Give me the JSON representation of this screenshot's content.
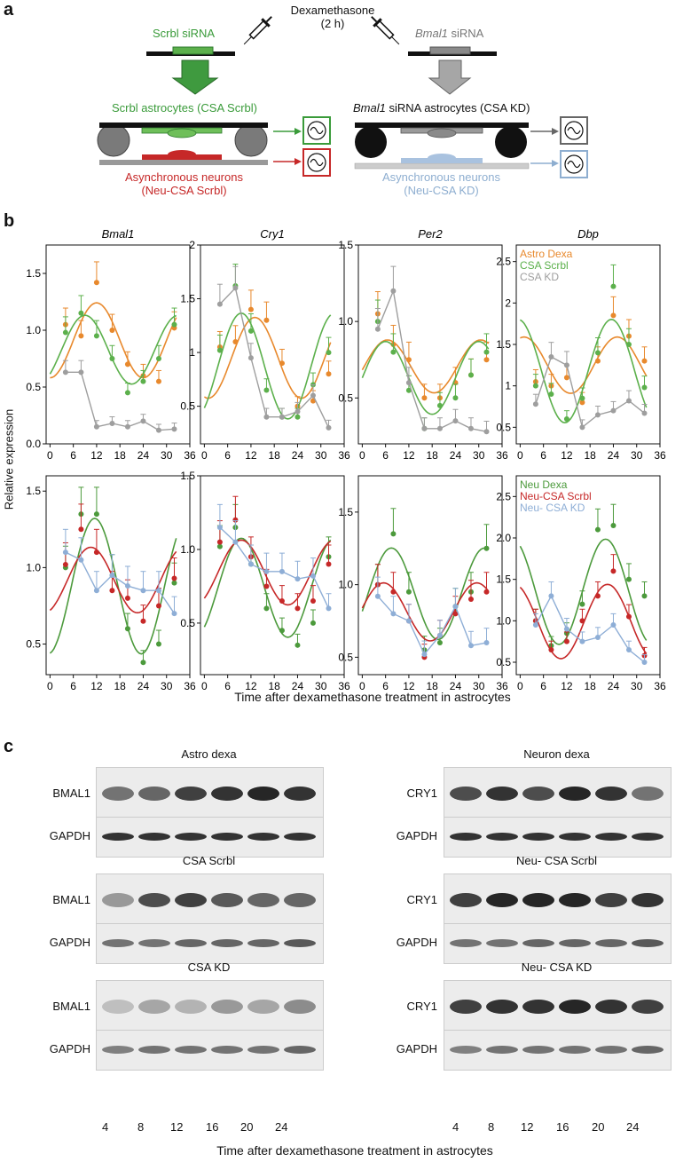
{
  "panel_a": {
    "letter": "a",
    "dexa_line1": "Dexamethasone",
    "dexa_line2": "(2 h)",
    "scrbl_sirna": "Scrbl siRNA",
    "bmal1_sirna_gene": "Bmal1",
    "bmal1_sirna_rest": " siRNA",
    "scrbl_astro": "Scrbl astrocytes (CSA Scrbl)",
    "bmal1_astro_gene": "Bmal1",
    "bmal1_astro_rest": " siRNA astrocytes (CSA KD)",
    "async_neurons_l1": "Asynchronous neurons",
    "async_neurons_l2": "(Neu-CSA Scrbl)",
    "async_neurons_kd_l1": "Asynchronous neurons",
    "async_neurons_kd_l2": "(Neu-CSA KD)",
    "colors": {
      "green": "#3a9b3a",
      "red": "#c62828",
      "gray": "#808080",
      "blue": "#8eaed0",
      "black": "#111111"
    }
  },
  "panel_b": {
    "letter": "b",
    "ylabel": "Relative expression",
    "xlabel": "Time after dexamethasone treatment in astrocytes",
    "x_ticks": [
      "0",
      "6",
      "12",
      "18",
      "24",
      "30",
      "36"
    ],
    "legend_top": [
      "Astro Dexa",
      "CSA Scrbl",
      "CSA KD"
    ],
    "legend_bottom": [
      "Neu Dexa",
      "Neu-CSA Scrbl",
      "Neu- CSA KD"
    ],
    "series_colors": {
      "astro_dexa": "#e8892d",
      "csa_scrbl": "#5cb04c",
      "csa_kd": "#9e9e9e",
      "neu_dexa": "#4c9a3c",
      "neu_csa_scrbl": "#c62828",
      "neu_csa_kd": "#8eaed6"
    }
  },
  "chart_data": [
    {
      "type": "scatter",
      "title": "Bmal1",
      "row": "top",
      "ylim": [
        0,
        1.75
      ],
      "yticks": [
        "0.0",
        "0.5",
        "1.0",
        "1.5"
      ],
      "x": [
        4,
        8,
        12,
        16,
        20,
        24,
        28,
        32
      ],
      "series": [
        {
          "name": "Astro Dexa",
          "values": [
            1.05,
            0.95,
            1.42,
            1.0,
            0.7,
            0.6,
            0.55,
            1.02
          ]
        },
        {
          "name": "CSA Scrbl",
          "values": [
            0.98,
            1.15,
            0.95,
            0.75,
            0.45,
            0.55,
            0.75,
            1.05
          ]
        },
        {
          "name": "CSA KD",
          "values": [
            0.63,
            0.63,
            0.15,
            0.18,
            0.15,
            0.2,
            0.12,
            0.13
          ]
        }
      ]
    },
    {
      "type": "scatter",
      "title": "Cry1",
      "row": "top",
      "ylim": [
        0.15,
        2.0
      ],
      "yticks": [
        "0.5",
        "1",
        "1.5",
        "2"
      ],
      "x": [
        4,
        8,
        12,
        16,
        20,
        24,
        28,
        32
      ],
      "series": [
        {
          "name": "Astro Dexa",
          "values": [
            1.05,
            1.1,
            1.4,
            1.3,
            0.9,
            0.5,
            0.55,
            0.8
          ]
        },
        {
          "name": "CSA Scrbl",
          "values": [
            1.02,
            1.62,
            1.2,
            0.65,
            0.4,
            0.4,
            0.7,
            1.0
          ]
        },
        {
          "name": "CSA KD",
          "values": [
            1.45,
            1.6,
            0.95,
            0.4,
            0.4,
            0.45,
            0.6,
            0.3
          ]
        }
      ]
    },
    {
      "type": "scatter",
      "title": "Per2",
      "row": "top",
      "ylim": [
        0.2,
        1.5
      ],
      "yticks": [
        "0.5",
        "1.0",
        "1.5"
      ],
      "x": [
        4,
        8,
        12,
        16,
        20,
        24,
        28,
        32
      ],
      "series": [
        {
          "name": "Astro Dexa",
          "values": [
            1.05,
            0.85,
            0.75,
            0.5,
            0.5,
            0.6,
            0.65,
            0.75
          ]
        },
        {
          "name": "CSA Scrbl",
          "values": [
            1.0,
            0.8,
            0.55,
            0.3,
            0.45,
            0.5,
            0.65,
            0.8
          ]
        },
        {
          "name": "CSA KD",
          "values": [
            0.95,
            1.2,
            0.6,
            0.3,
            0.3,
            0.35,
            0.3,
            0.28
          ]
        }
      ]
    },
    {
      "type": "scatter",
      "title": "Dbp",
      "row": "top",
      "ylim": [
        0.3,
        2.7
      ],
      "yticks": [
        "0.5",
        "1",
        "1.5",
        "2",
        "2.5"
      ],
      "x": [
        4,
        8,
        12,
        16,
        20,
        24,
        28,
        32
      ],
      "series": [
        {
          "name": "Astro Dexa",
          "values": [
            1.05,
            1.0,
            1.1,
            0.8,
            1.3,
            1.85,
            1.6,
            1.3
          ]
        },
        {
          "name": "CSA Scrbl",
          "values": [
            1.0,
            0.9,
            0.6,
            0.85,
            1.4,
            2.2,
            1.5,
            0.98
          ]
        },
        {
          "name": "CSA KD",
          "values": [
            0.78,
            1.35,
            1.25,
            0.5,
            0.65,
            0.7,
            0.82,
            0.67
          ]
        }
      ]
    },
    {
      "type": "scatter",
      "title": "",
      "row": "bottom",
      "ylim": [
        0.3,
        1.6
      ],
      "yticks": [
        "0.5",
        "1.0",
        "1.5"
      ],
      "x": [
        4,
        8,
        12,
        16,
        20,
        24,
        28,
        32
      ],
      "series": [
        {
          "name": "Neu Dexa",
          "values": [
            1.0,
            1.35,
            1.35,
            0.95,
            0.6,
            0.38,
            0.5,
            0.9
          ]
        },
        {
          "name": "Neu-CSA Scrbl",
          "values": [
            1.02,
            1.25,
            1.1,
            0.85,
            0.8,
            0.65,
            0.75,
            0.93
          ]
        },
        {
          "name": "Neu- CSA KD",
          "values": [
            1.1,
            1.05,
            0.85,
            0.95,
            0.88,
            0.85,
            0.85,
            0.7
          ]
        }
      ]
    },
    {
      "type": "scatter",
      "title": "",
      "row": "bottom",
      "ylim": [
        0.15,
        1.5
      ],
      "yticks": [
        "0.5",
        "1.0",
        "1.5"
      ],
      "x": [
        4,
        8,
        12,
        16,
        20,
        24,
        28,
        32
      ],
      "series": [
        {
          "name": "Neu Dexa",
          "values": [
            1.02,
            1.15,
            0.9,
            0.6,
            0.45,
            0.35,
            0.5,
            0.95
          ]
        },
        {
          "name": "Neu-CSA Scrbl",
          "values": [
            1.05,
            1.2,
            0.95,
            0.75,
            0.65,
            0.6,
            0.65,
            0.9
          ]
        },
        {
          "name": "Neu- CSA KD",
          "values": [
            1.15,
            1.05,
            0.9,
            0.85,
            0.85,
            0.8,
            0.82,
            0.6
          ]
        }
      ]
    },
    {
      "type": "scatter",
      "title": "",
      "row": "bottom",
      "ylim": [
        0.38,
        1.75
      ],
      "yticks": [
        "0.5",
        "1.0",
        "1.5"
      ],
      "x": [
        4,
        8,
        12,
        16,
        20,
        24,
        28,
        32
      ],
      "series": [
        {
          "name": "Neu Dexa",
          "values": [
            1.0,
            1.35,
            0.95,
            0.55,
            0.6,
            0.85,
            0.95,
            1.25
          ]
        },
        {
          "name": "Neu-CSA Scrbl",
          "values": [
            1.0,
            0.95,
            0.75,
            0.5,
            0.65,
            0.8,
            0.9,
            0.95
          ]
        },
        {
          "name": "Neu- CSA KD",
          "values": [
            0.92,
            0.8,
            0.75,
            0.52,
            0.65,
            0.85,
            0.58,
            0.6
          ]
        }
      ]
    },
    {
      "type": "scatter",
      "title": "",
      "row": "bottom",
      "ylim": [
        0.35,
        2.75
      ],
      "yticks": [
        "0.5",
        "1.0",
        "1.5",
        "2.0",
        "2.5"
      ],
      "x": [
        4,
        8,
        12,
        16,
        20,
        24,
        28,
        32
      ],
      "series": [
        {
          "name": "Neu Dexa",
          "values": [
            1.0,
            0.7,
            0.85,
            1.2,
            2.1,
            2.15,
            1.5,
            1.3
          ]
        },
        {
          "name": "Neu-CSA Scrbl",
          "values": [
            1.0,
            0.65,
            0.75,
            1.0,
            1.3,
            1.6,
            1.05,
            0.58
          ]
        },
        {
          "name": "Neu- CSA KD",
          "values": [
            0.95,
            1.3,
            0.9,
            0.75,
            0.8,
            0.95,
            0.65,
            0.5
          ]
        }
      ]
    }
  ],
  "panel_c": {
    "letter": "c",
    "time_labels": [
      "4",
      "8",
      "12",
      "16",
      "20",
      "24"
    ],
    "xlabel": "Time after dexamethasone treatment in astrocytes",
    "left": [
      {
        "title": "Astro dexa",
        "rows": [
          "BMAL1",
          "GAPDH"
        ]
      },
      {
        "title": "CSA Scrbl",
        "rows": [
          "BMAL1",
          "GAPDH"
        ]
      },
      {
        "title": "CSA KD",
        "rows": [
          "BMAL1",
          "GAPDH"
        ]
      }
    ],
    "right": [
      {
        "title": "Neuron dexa",
        "rows": [
          "CRY1",
          "GAPDH"
        ]
      },
      {
        "title": "Neu- CSA Scrbl",
        "rows": [
          "CRY1",
          "GAPDH"
        ]
      },
      {
        "title": "Neu- CSA KD",
        "rows": [
          "CRY1",
          "GAPDH"
        ]
      }
    ]
  }
}
